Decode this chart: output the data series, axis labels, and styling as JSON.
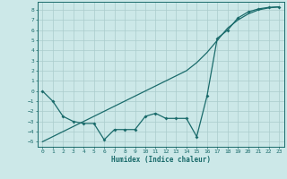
{
  "xlabel": "Humidex (Indice chaleur)",
  "xlim": [
    -0.5,
    23.5
  ],
  "ylim": [
    -5.5,
    8.8
  ],
  "xticks": [
    0,
    1,
    2,
    3,
    4,
    5,
    6,
    7,
    8,
    9,
    10,
    11,
    12,
    13,
    14,
    15,
    16,
    17,
    18,
    19,
    20,
    21,
    22,
    23
  ],
  "yticks": [
    -5,
    -4,
    -3,
    -2,
    -1,
    0,
    1,
    2,
    3,
    4,
    5,
    6,
    7,
    8
  ],
  "background_color": "#cce8e8",
  "grid_color": "#aacccc",
  "line_color": "#1a6b6b",
  "smooth_x": [
    0,
    1,
    2,
    3,
    4,
    5,
    6,
    7,
    8,
    9,
    10,
    11,
    12,
    13,
    14,
    15,
    16,
    17,
    18,
    19,
    20,
    21,
    22,
    23
  ],
  "smooth_y": [
    -5,
    -4.5,
    -4,
    -3.5,
    -3,
    -2.5,
    -2,
    -1.5,
    -1,
    -0.5,
    0,
    0.5,
    1,
    1.5,
    2,
    2.8,
    3.8,
    5.0,
    6.2,
    7.0,
    7.6,
    8.0,
    8.2,
    8.3
  ],
  "data_x": [
    0,
    1,
    2,
    3,
    4,
    5,
    6,
    7,
    8,
    9,
    10,
    11,
    12,
    13,
    14,
    15,
    16,
    17,
    18,
    19,
    20,
    21,
    22,
    23
  ],
  "data_y": [
    0,
    -1,
    -2.5,
    -3,
    -3.2,
    -3.2,
    -4.8,
    -3.8,
    -3.8,
    -3.8,
    -2.5,
    -2.2,
    -2.7,
    -2.7,
    -2.7,
    -4.5,
    -0.5,
    5.2,
    6.0,
    7.2,
    7.8,
    8.1,
    8.25,
    8.3
  ]
}
